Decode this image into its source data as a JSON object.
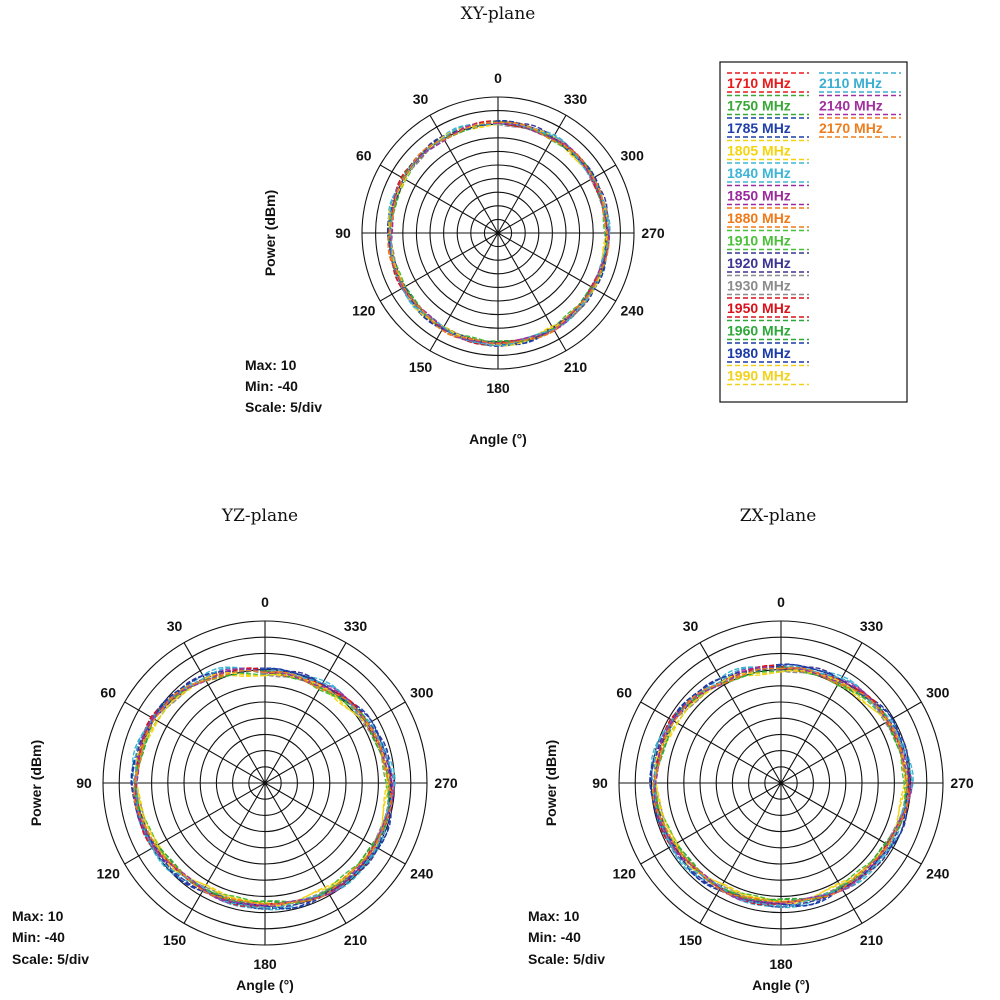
{
  "chart_data": [
    {
      "type": "polar-line",
      "title": "XY-plane",
      "xlabel": "Angle (°)",
      "ylabel": "Power (dBm)",
      "angle_ticks": [
        "0",
        "30",
        "60",
        "90",
        "120",
        "150",
        "180",
        "210",
        "240",
        "270",
        "300",
        "330"
      ],
      "info": [
        "Max: 10",
        "Min: -40",
        "Scale: 5/div"
      ],
      "rlim": [
        -40,
        10
      ],
      "r_step": 5,
      "grid": true,
      "legend": "right",
      "angles_deg": [
        0,
        30,
        60,
        90,
        120,
        150,
        180,
        210,
        240,
        270,
        300,
        330
      ],
      "series": [
        {
          "name": "1710 MHz",
          "color": "#e8191b",
          "values": [
            0.5,
            0.3,
            0.1,
            -0.2,
            0.1,
            0.4,
            0.8,
            0.6,
            0.4,
            0.2,
            0.3,
            0.5
          ]
        },
        {
          "name": "1750 MHz",
          "color": "#38a935",
          "values": [
            0.3,
            0.1,
            -0.2,
            -0.4,
            0.0,
            0.3,
            0.6,
            0.5,
            0.2,
            0.0,
            0.1,
            0.3
          ]
        },
        {
          "name": "1785 MHz",
          "color": "#1f3fa8",
          "values": [
            0.7,
            0.5,
            0.2,
            0.0,
            0.3,
            0.6,
            1.0,
            0.8,
            0.5,
            0.3,
            0.4,
            0.6
          ]
        },
        {
          "name": "1805 MHz",
          "color": "#f5d40f",
          "values": [
            0.2,
            0.0,
            -0.3,
            -0.5,
            -0.2,
            0.2,
            0.5,
            0.3,
            0.1,
            -0.1,
            0.0,
            0.2
          ]
        },
        {
          "name": "1840 MHz",
          "color": "#3fb5d6",
          "values": [
            0.9,
            0.6,
            0.4,
            0.1,
            0.4,
            0.8,
            1.1,
            0.9,
            0.6,
            0.5,
            0.6,
            0.8
          ]
        },
        {
          "name": "1850 MHz",
          "color": "#9c2a9e",
          "values": [
            0.4,
            0.2,
            0.0,
            -0.3,
            0.1,
            0.3,
            0.7,
            0.6,
            0.3,
            0.1,
            0.2,
            0.4
          ]
        },
        {
          "name": "1880 MHz",
          "color": "#f07a1a",
          "values": [
            0.6,
            0.4,
            0.1,
            -0.1,
            0.2,
            0.5,
            0.9,
            0.7,
            0.4,
            0.2,
            0.3,
            0.5
          ]
        },
        {
          "name": "1910 MHz",
          "color": "#4bbf3a",
          "values": [
            0.1,
            -0.1,
            -0.4,
            -0.6,
            -0.3,
            0.1,
            0.4,
            0.2,
            0.0,
            -0.2,
            -0.1,
            0.1
          ]
        },
        {
          "name": "1920 MHz",
          "color": "#3b3492",
          "values": [
            0.8,
            0.5,
            0.3,
            0.0,
            0.3,
            0.7,
            1.0,
            0.8,
            0.5,
            0.4,
            0.5,
            0.7
          ]
        },
        {
          "name": "1930 MHz",
          "color": "#8c8c8c",
          "values": [
            0.3,
            0.2,
            -0.1,
            -0.3,
            0.0,
            0.3,
            0.7,
            0.5,
            0.3,
            0.1,
            0.2,
            0.3
          ]
        },
        {
          "name": "1950 MHz",
          "color": "#d8121b",
          "values": [
            0.5,
            0.4,
            0.2,
            -0.2,
            0.2,
            0.5,
            0.8,
            0.6,
            0.4,
            0.3,
            0.3,
            0.5
          ]
        },
        {
          "name": "1960 MHz",
          "color": "#2fa83b",
          "values": [
            0.2,
            0.1,
            -0.2,
            -0.4,
            -0.1,
            0.2,
            0.6,
            0.4,
            0.2,
            0.0,
            0.1,
            0.2
          ]
        },
        {
          "name": "1980 MHz",
          "color": "#1b3aa6",
          "values": [
            0.7,
            0.4,
            0.2,
            0.0,
            0.3,
            0.6,
            0.9,
            0.7,
            0.5,
            0.3,
            0.4,
            0.6
          ]
        },
        {
          "name": "1990 MHz",
          "color": "#f2d21c",
          "values": [
            0.4,
            0.2,
            0.0,
            -0.2,
            0.1,
            0.4,
            0.8,
            0.6,
            0.3,
            0.1,
            0.2,
            0.4
          ]
        },
        {
          "name": "2110 MHz",
          "color": "#3aaed0",
          "values": [
            0.6,
            0.3,
            0.1,
            -0.1,
            0.2,
            0.5,
            0.9,
            0.7,
            0.4,
            0.2,
            0.3,
            0.5
          ]
        },
        {
          "name": "2140 MHz",
          "color": "#a0309f",
          "values": [
            0.3,
            0.1,
            -0.1,
            -0.3,
            0.0,
            0.3,
            0.7,
            0.5,
            0.2,
            0.0,
            0.2,
            0.3
          ]
        },
        {
          "name": "2170 MHz",
          "color": "#ee7d1e",
          "values": [
            0.5,
            0.3,
            0.1,
            -0.2,
            0.1,
            0.4,
            0.8,
            0.6,
            0.3,
            0.2,
            0.3,
            0.4
          ]
        }
      ]
    },
    {
      "type": "polar-line",
      "title": "YZ-plane",
      "xlabel": "Angle (°)",
      "ylabel": "Power (dBm)",
      "angle_ticks": [
        "0",
        "30",
        "60",
        "90",
        "120",
        "150",
        "180",
        "210",
        "240",
        "270",
        "300",
        "330"
      ],
      "info": [
        "Max: 10",
        "Min: -40",
        "Scale: 5/div"
      ],
      "rlim": [
        -40,
        10
      ],
      "r_step": 5,
      "grid": true,
      "angles_deg": [
        0,
        30,
        60,
        90,
        120,
        150,
        180,
        210,
        240,
        270,
        300,
        330
      ],
      "series": [
        {
          "name": "1710 MHz",
          "color": "#e8191b",
          "values": [
            -5.8,
            -2.6,
            -0.3,
            0.3,
            -0.6,
            -2.2,
            -2.2,
            -1.2,
            -0.6,
            -1.2,
            -3.2,
            -5.2
          ]
        },
        {
          "name": "1750 MHz",
          "color": "#38a935",
          "values": [
            -6.4,
            -3.2,
            -0.8,
            -0.2,
            -1.2,
            -2.8,
            -2.8,
            -1.8,
            -1.2,
            -1.8,
            -3.8,
            -5.8
          ]
        },
        {
          "name": "1785 MHz",
          "color": "#1f3fa8",
          "values": [
            -5.2,
            -2.0,
            0.2,
            0.8,
            0.0,
            -1.6,
            -1.6,
            -0.6,
            0.0,
            -0.6,
            -2.6,
            -4.6
          ]
        },
        {
          "name": "1805 MHz",
          "color": "#f5d40f",
          "values": [
            -6.8,
            -3.6,
            -1.2,
            -0.6,
            -1.6,
            -3.2,
            -3.2,
            -2.2,
            -1.6,
            -2.2,
            -4.2,
            -6.2
          ]
        },
        {
          "name": "1840 MHz",
          "color": "#3fb5d6",
          "values": [
            -5.0,
            -1.8,
            0.4,
            1.0,
            0.2,
            -1.4,
            -1.4,
            -0.4,
            0.2,
            -0.4,
            -2.4,
            -4.4
          ]
        },
        {
          "name": "1850 MHz",
          "color": "#9c2a9e",
          "values": [
            -5.6,
            -2.4,
            -0.1,
            0.5,
            -0.4,
            -2.0,
            -2.0,
            -1.0,
            -0.4,
            -1.0,
            -3.0,
            -5.0
          ]
        },
        {
          "name": "1880 MHz",
          "color": "#f07a1a",
          "values": [
            -6.0,
            -2.8,
            -0.5,
            0.1,
            -0.8,
            -2.4,
            -2.4,
            -1.4,
            -0.8,
            -1.4,
            -3.4,
            -5.4
          ]
        },
        {
          "name": "1910 MHz",
          "color": "#4bbf3a",
          "values": [
            -6.6,
            -3.4,
            -1.0,
            -0.4,
            -1.4,
            -3.0,
            -3.0,
            -2.0,
            -1.4,
            -2.0,
            -4.0,
            -6.0
          ]
        },
        {
          "name": "1920 MHz",
          "color": "#3b3492",
          "values": [
            -5.4,
            -2.2,
            0.0,
            0.6,
            -0.2,
            -1.8,
            -1.8,
            -0.8,
            -0.2,
            -0.8,
            -2.8,
            -4.8
          ]
        },
        {
          "name": "1930 MHz",
          "color": "#8c8c8c",
          "values": [
            -6.2,
            -3.0,
            -0.6,
            0.0,
            -1.0,
            -2.6,
            -2.6,
            -1.6,
            -1.0,
            -1.6,
            -3.6,
            -5.6
          ]
        },
        {
          "name": "1950 MHz",
          "color": "#d8121b",
          "values": [
            -5.8,
            -2.5,
            -0.2,
            0.4,
            -0.5,
            -2.1,
            -2.1,
            -1.1,
            -0.5,
            -1.1,
            -3.1,
            -5.1
          ]
        },
        {
          "name": "1960 MHz",
          "color": "#2fa83b",
          "values": [
            -6.3,
            -3.1,
            -0.7,
            -0.1,
            -1.1,
            -2.7,
            -2.7,
            -1.7,
            -1.1,
            -1.7,
            -3.7,
            -5.7
          ]
        },
        {
          "name": "1980 MHz",
          "color": "#1b3aa6",
          "values": [
            -5.3,
            -2.1,
            0.1,
            0.7,
            -0.1,
            -1.7,
            -1.7,
            -0.7,
            -0.1,
            -0.7,
            -2.7,
            -4.7
          ]
        },
        {
          "name": "1990 MHz",
          "color": "#f2d21c",
          "values": [
            -6.5,
            -3.3,
            -0.9,
            -0.3,
            -1.3,
            -2.9,
            -2.9,
            -1.9,
            -1.3,
            -1.9,
            -3.9,
            -5.9
          ]
        },
        {
          "name": "2110 MHz",
          "color": "#3aaed0",
          "values": [
            -5.5,
            -2.3,
            -0.1,
            0.5,
            -0.3,
            -1.9,
            -1.9,
            -0.9,
            -0.3,
            -0.9,
            -2.9,
            -4.9
          ]
        },
        {
          "name": "2140 MHz",
          "color": "#a0309f",
          "values": [
            -5.9,
            -2.7,
            -0.4,
            0.2,
            -0.7,
            -2.3,
            -2.3,
            -1.3,
            -0.7,
            -1.3,
            -3.3,
            -5.3
          ]
        },
        {
          "name": "2170 MHz",
          "color": "#ee7d1e",
          "values": [
            -6.1,
            -2.9,
            -0.6,
            0.0,
            -0.9,
            -2.5,
            -2.5,
            -1.5,
            -0.9,
            -1.5,
            -3.5,
            -5.5
          ]
        }
      ]
    },
    {
      "type": "polar-line",
      "title": "ZX-plane",
      "xlabel": "Angle (°)",
      "ylabel": "Power (dBm)",
      "angle_ticks": [
        "0",
        "30",
        "60",
        "90",
        "120",
        "150",
        "180",
        "210",
        "240",
        "270",
        "300",
        "330"
      ],
      "info": [
        "Max: 10",
        "Min: -40",
        "Scale: 5/div"
      ],
      "rlim": [
        -40,
        10
      ],
      "r_step": 5,
      "grid": true,
      "angles_deg": [
        0,
        30,
        60,
        90,
        120,
        150,
        180,
        210,
        240,
        270,
        300,
        330
      ],
      "series": [
        {
          "name": "1710 MHz",
          "color": "#e8191b",
          "values": [
            -4.6,
            -3.6,
            -1.6,
            -0.6,
            -1.6,
            -2.6,
            -2.8,
            -2.6,
            -1.6,
            -0.6,
            -1.6,
            -3.6
          ]
        },
        {
          "name": "1750 MHz",
          "color": "#38a935",
          "values": [
            -5.2,
            -4.2,
            -2.2,
            -1.2,
            -2.2,
            -3.2,
            -3.4,
            -3.2,
            -2.2,
            -1.2,
            -2.2,
            -4.2
          ]
        },
        {
          "name": "1785 MHz",
          "color": "#1f3fa8",
          "values": [
            -4.0,
            -3.0,
            -1.0,
            0.0,
            -1.0,
            -2.0,
            -2.2,
            -2.0,
            -1.0,
            0.0,
            -1.0,
            -3.0
          ]
        },
        {
          "name": "1805 MHz",
          "color": "#f5d40f",
          "values": [
            -5.6,
            -4.6,
            -2.6,
            -1.6,
            -2.6,
            -3.6,
            -3.8,
            -3.6,
            -2.6,
            -1.6,
            -2.6,
            -4.6
          ]
        },
        {
          "name": "1840 MHz",
          "color": "#3fb5d6",
          "values": [
            -3.8,
            -2.8,
            -0.8,
            0.2,
            -0.8,
            -1.8,
            -2.0,
            -1.8,
            -0.8,
            0.2,
            -0.8,
            -2.8
          ]
        },
        {
          "name": "1850 MHz",
          "color": "#9c2a9e",
          "values": [
            -4.4,
            -3.4,
            -1.4,
            -0.4,
            -1.4,
            -2.4,
            -2.6,
            -2.4,
            -1.4,
            -0.4,
            -1.4,
            -3.4
          ]
        },
        {
          "name": "1880 MHz",
          "color": "#f07a1a",
          "values": [
            -4.8,
            -3.8,
            -1.8,
            -0.8,
            -1.8,
            -2.8,
            -3.0,
            -2.8,
            -1.8,
            -0.8,
            -1.8,
            -3.8
          ]
        },
        {
          "name": "1910 MHz",
          "color": "#4bbf3a",
          "values": [
            -5.4,
            -4.4,
            -2.4,
            -1.4,
            -2.4,
            -3.4,
            -3.6,
            -3.4,
            -2.4,
            -1.4,
            -2.4,
            -4.4
          ]
        },
        {
          "name": "1920 MHz",
          "color": "#3b3492",
          "values": [
            -4.2,
            -3.2,
            -1.2,
            -0.2,
            -1.2,
            -2.2,
            -2.4,
            -2.2,
            -1.2,
            -0.2,
            -1.2,
            -3.2
          ]
        },
        {
          "name": "1930 MHz",
          "color": "#8c8c8c",
          "values": [
            -5.0,
            -4.0,
            -2.0,
            -1.0,
            -2.0,
            -3.0,
            -3.2,
            -3.0,
            -2.0,
            -1.0,
            -2.0,
            -4.0
          ]
        },
        {
          "name": "1950 MHz",
          "color": "#d8121b",
          "values": [
            -4.5,
            -3.5,
            -1.5,
            -0.5,
            -1.5,
            -2.5,
            -2.7,
            -2.5,
            -1.5,
            -0.5,
            -1.5,
            -3.5
          ]
        },
        {
          "name": "1960 MHz",
          "color": "#2fa83b",
          "values": [
            -5.1,
            -4.1,
            -2.1,
            -1.1,
            -2.1,
            -3.1,
            -3.3,
            -3.1,
            -2.1,
            -1.1,
            -2.1,
            -4.1
          ]
        },
        {
          "name": "1980 MHz",
          "color": "#1b3aa6",
          "values": [
            -4.1,
            -3.1,
            -1.1,
            -0.1,
            -1.1,
            -2.1,
            -2.3,
            -2.1,
            -1.1,
            -0.1,
            -1.1,
            -3.1
          ]
        },
        {
          "name": "1990 MHz",
          "color": "#f2d21c",
          "values": [
            -5.3,
            -4.3,
            -2.3,
            -1.3,
            -2.3,
            -3.3,
            -3.5,
            -3.3,
            -2.3,
            -1.3,
            -2.3,
            -4.3
          ]
        },
        {
          "name": "2110 MHz",
          "color": "#3aaed0",
          "values": [
            -4.3,
            -3.3,
            -1.3,
            -0.3,
            -1.3,
            -2.3,
            -2.5,
            -2.3,
            -1.3,
            -0.3,
            -1.3,
            -3.3
          ]
        },
        {
          "name": "2140 MHz",
          "color": "#a0309f",
          "values": [
            -4.7,
            -3.7,
            -1.7,
            -0.7,
            -1.7,
            -2.7,
            -2.9,
            -2.7,
            -1.7,
            -0.7,
            -1.7,
            -3.7
          ]
        },
        {
          "name": "2170 MHz",
          "color": "#ee7d1e",
          "values": [
            -4.9,
            -3.9,
            -1.9,
            -0.9,
            -1.9,
            -2.9,
            -3.1,
            -2.9,
            -1.9,
            -0.9,
            -1.9,
            -3.9
          ]
        }
      ]
    }
  ]
}
